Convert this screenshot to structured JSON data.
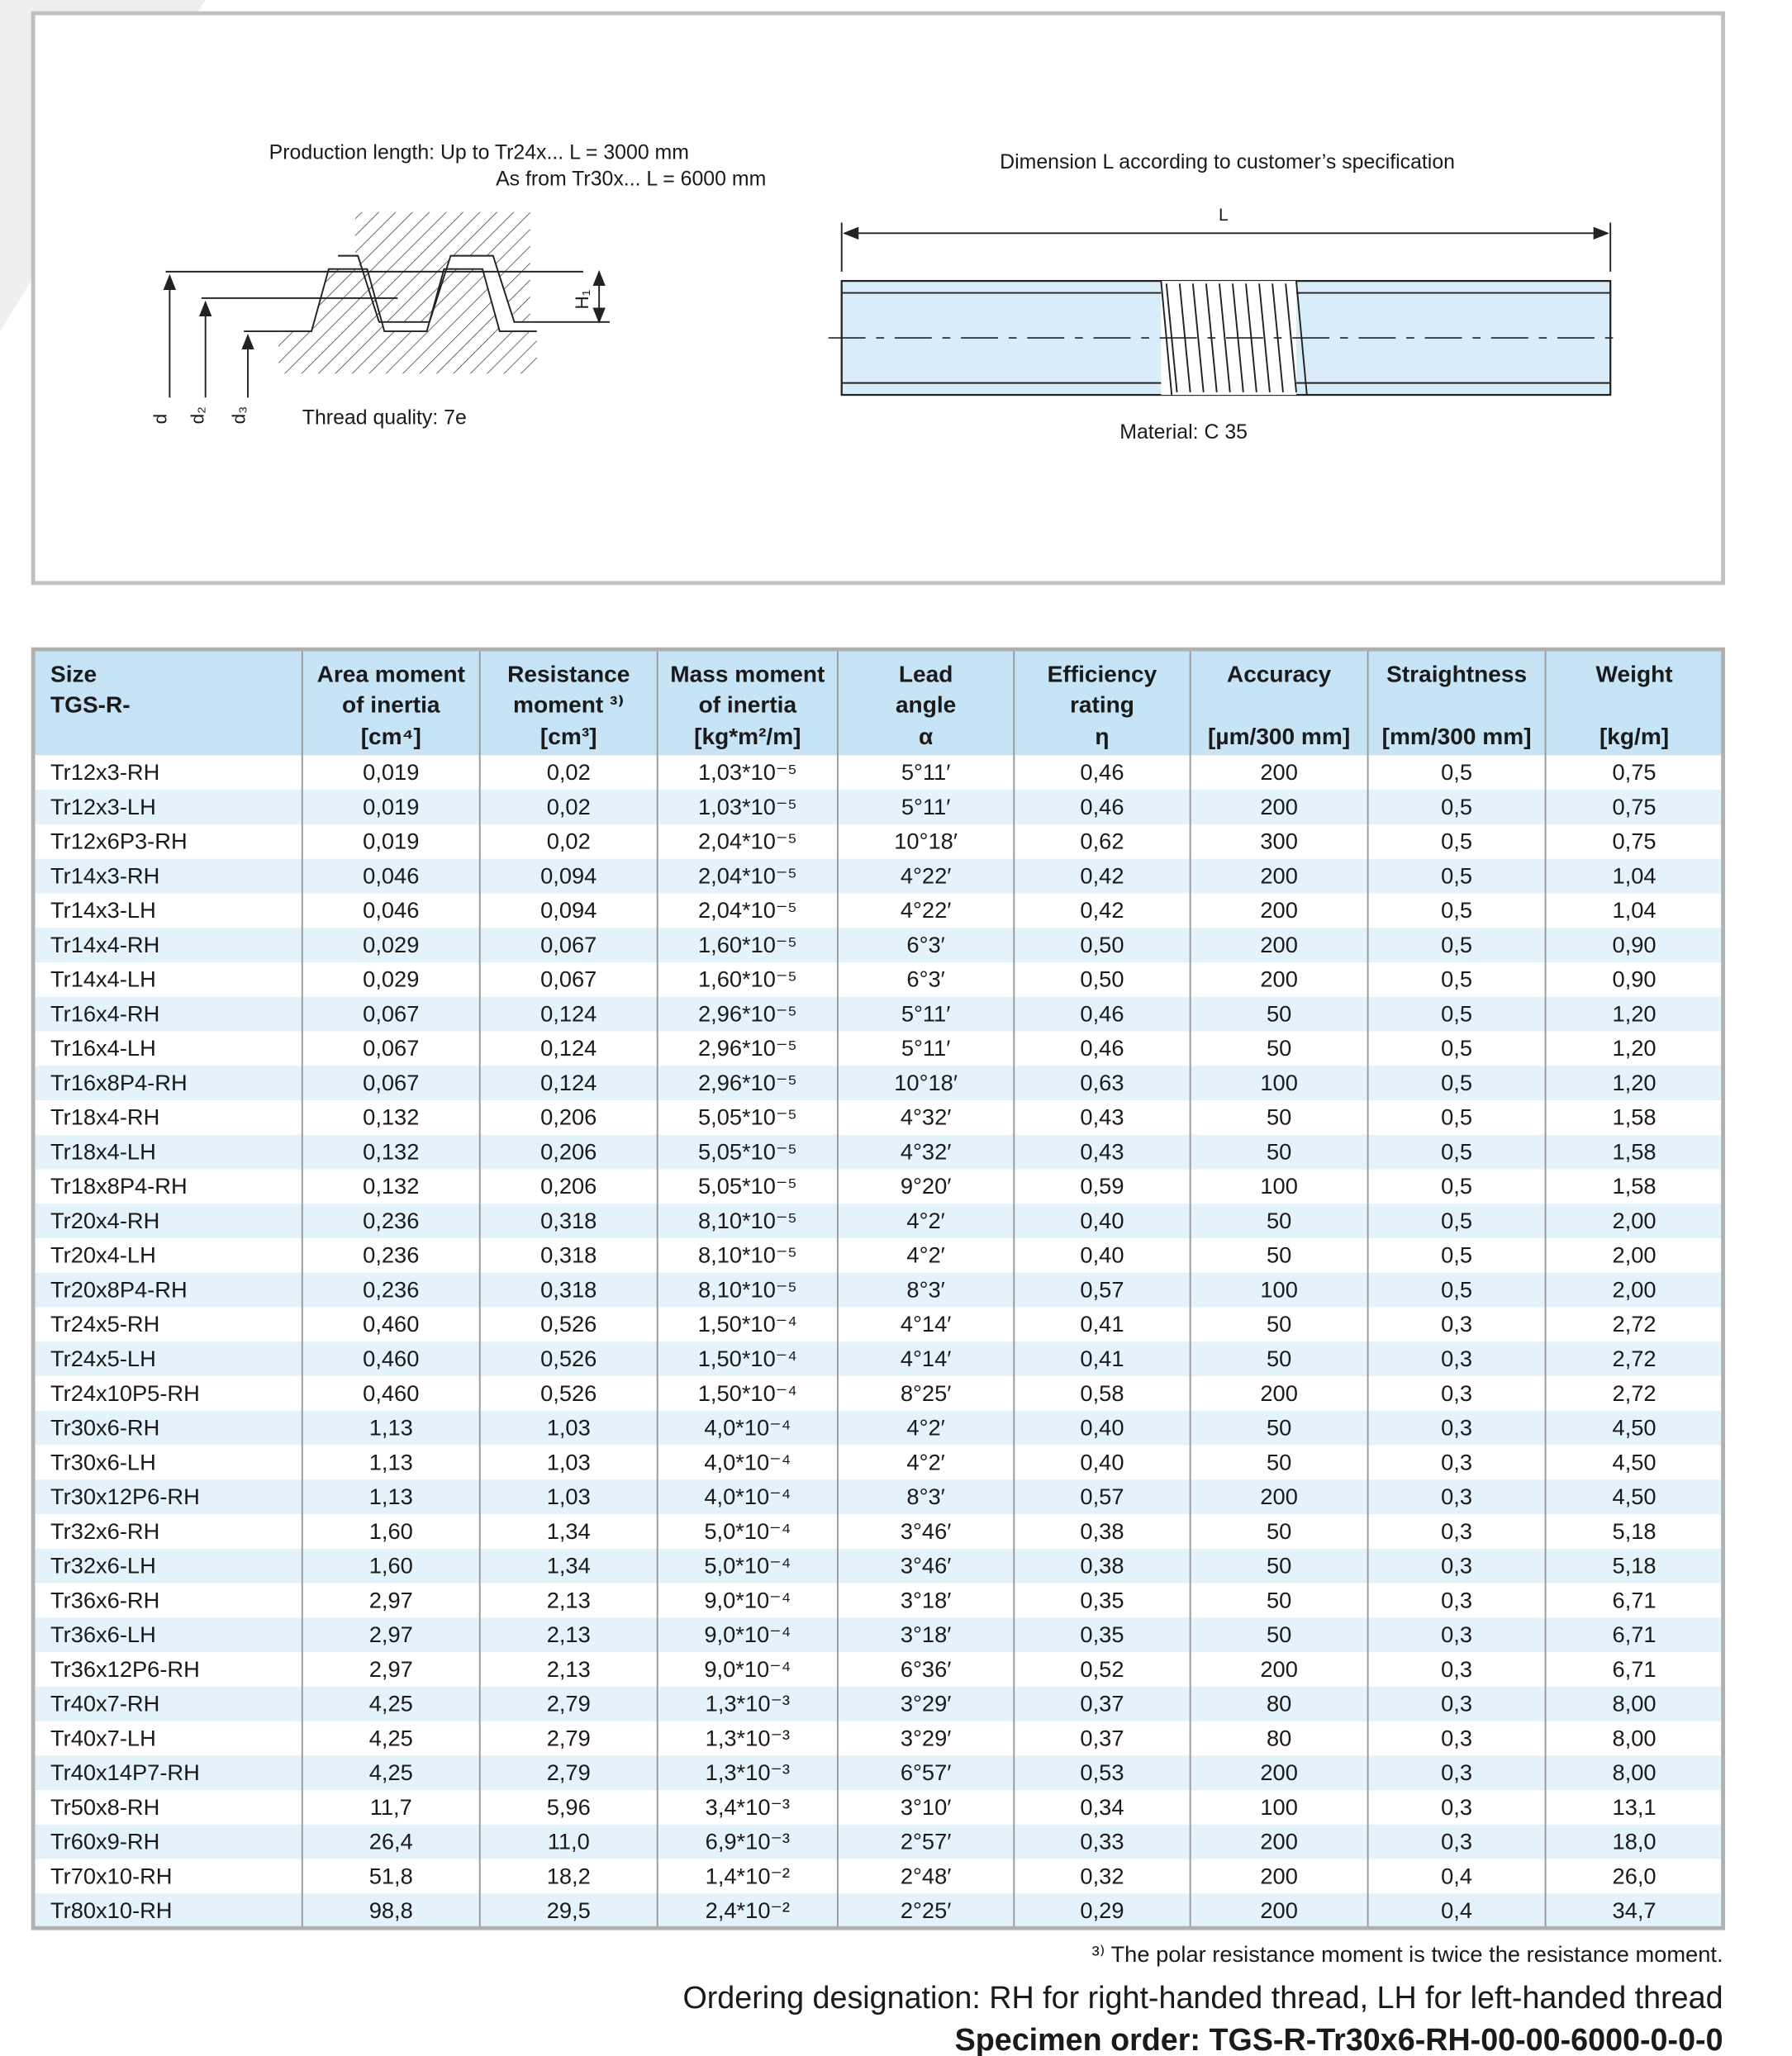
{
  "diagram": {
    "production_length_line1": "Production length: Up to Tr24x...  L = 3000 mm",
    "production_length_line2": "As from Tr30x...  L = 6000 mm",
    "thread_quality": "Thread quality: 7e",
    "label_d": "d",
    "label_d2": "d₂",
    "label_d3": "d₃",
    "label_h1": "H₁",
    "dimension_note": "Dimension L according to customer’s specification",
    "label_l": "L",
    "material": "Material: C 35"
  },
  "table": {
    "header": [
      [
        "Size",
        "TGS-R-"
      ],
      [
        "Area moment",
        "of inertia",
        "[cm⁴]"
      ],
      [
        "Resistance",
        "moment ³⁾",
        "[cm³]"
      ],
      [
        "Mass moment",
        "of inertia",
        "[kg*m²/m]"
      ],
      [
        "Lead",
        "angle",
        "α"
      ],
      [
        "Efficiency",
        "rating",
        "η"
      ],
      [
        "Accuracy",
        "[µm/300 mm]"
      ],
      [
        "Straightness",
        "[mm/300 mm]"
      ],
      [
        "Weight",
        "[kg/m]"
      ]
    ],
    "rows": [
      [
        "Tr12x3-RH",
        "0,019",
        "0,02",
        "1,03*10⁻⁵",
        "5°11′",
        "0,46",
        "200",
        "0,5",
        "0,75"
      ],
      [
        "Tr12x3-LH",
        "0,019",
        "0,02",
        "1,03*10⁻⁵",
        "5°11′",
        "0,46",
        "200",
        "0,5",
        "0,75"
      ],
      [
        "Tr12x6P3-RH",
        "0,019",
        "0,02",
        "2,04*10⁻⁵",
        "10°18′",
        "0,62",
        "300",
        "0,5",
        "0,75"
      ],
      [
        "Tr14x3-RH",
        "0,046",
        "0,094",
        "2,04*10⁻⁵",
        "4°22′",
        "0,42",
        "200",
        "0,5",
        "1,04"
      ],
      [
        "Tr14x3-LH",
        "0,046",
        "0,094",
        "2,04*10⁻⁵",
        "4°22′",
        "0,42",
        "200",
        "0,5",
        "1,04"
      ],
      [
        "Tr14x4-RH",
        "0,029",
        "0,067",
        "1,60*10⁻⁵",
        "6°3′",
        "0,50",
        "200",
        "0,5",
        "0,90"
      ],
      [
        "Tr14x4-LH",
        "0,029",
        "0,067",
        "1,60*10⁻⁵",
        "6°3′",
        "0,50",
        "200",
        "0,5",
        "0,90"
      ],
      [
        "Tr16x4-RH",
        "0,067",
        "0,124",
        "2,96*10⁻⁵",
        "5°11′",
        "0,46",
        "50",
        "0,5",
        "1,20"
      ],
      [
        "Tr16x4-LH",
        "0,067",
        "0,124",
        "2,96*10⁻⁵",
        "5°11′",
        "0,46",
        "50",
        "0,5",
        "1,20"
      ],
      [
        "Tr16x8P4-RH",
        "0,067",
        "0,124",
        "2,96*10⁻⁵",
        "10°18′",
        "0,63",
        "100",
        "0,5",
        "1,20"
      ],
      [
        "Tr18x4-RH",
        "0,132",
        "0,206",
        "5,05*10⁻⁵",
        "4°32′",
        "0,43",
        "50",
        "0,5",
        "1,58"
      ],
      [
        "Tr18x4-LH",
        "0,132",
        "0,206",
        "5,05*10⁻⁵",
        "4°32′",
        "0,43",
        "50",
        "0,5",
        "1,58"
      ],
      [
        "Tr18x8P4-RH",
        "0,132",
        "0,206",
        "5,05*10⁻⁵",
        "9°20′",
        "0,59",
        "100",
        "0,5",
        "1,58"
      ],
      [
        "Tr20x4-RH",
        "0,236",
        "0,318",
        "8,10*10⁻⁵",
        "4°2′",
        "0,40",
        "50",
        "0,5",
        "2,00"
      ],
      [
        "Tr20x4-LH",
        "0,236",
        "0,318",
        "8,10*10⁻⁵",
        "4°2′",
        "0,40",
        "50",
        "0,5",
        "2,00"
      ],
      [
        "Tr20x8P4-RH",
        "0,236",
        "0,318",
        "8,10*10⁻⁵",
        "8°3′",
        "0,57",
        "100",
        "0,5",
        "2,00"
      ],
      [
        "Tr24x5-RH",
        "0,460",
        "0,526",
        "1,50*10⁻⁴",
        "4°14′",
        "0,41",
        "50",
        "0,3",
        "2,72"
      ],
      [
        "Tr24x5-LH",
        "0,460",
        "0,526",
        "1,50*10⁻⁴",
        "4°14′",
        "0,41",
        "50",
        "0,3",
        "2,72"
      ],
      [
        "Tr24x10P5-RH",
        "0,460",
        "0,526",
        "1,50*10⁻⁴",
        "8°25′",
        "0,58",
        "200",
        "0,3",
        "2,72"
      ],
      [
        "Tr30x6-RH",
        "1,13",
        "1,03",
        "4,0*10⁻⁴",
        "4°2′",
        "0,40",
        "50",
        "0,3",
        "4,50"
      ],
      [
        "Tr30x6-LH",
        "1,13",
        "1,03",
        "4,0*10⁻⁴",
        "4°2′",
        "0,40",
        "50",
        "0,3",
        "4,50"
      ],
      [
        "Tr30x12P6-RH",
        "1,13",
        "1,03",
        "4,0*10⁻⁴",
        "8°3′",
        "0,57",
        "200",
        "0,3",
        "4,50"
      ],
      [
        "Tr32x6-RH",
        "1,60",
        "1,34",
        "5,0*10⁻⁴",
        "3°46′",
        "0,38",
        "50",
        "0,3",
        "5,18"
      ],
      [
        "Tr32x6-LH",
        "1,60",
        "1,34",
        "5,0*10⁻⁴",
        "3°46′",
        "0,38",
        "50",
        "0,3",
        "5,18"
      ],
      [
        "Tr36x6-RH",
        "2,97",
        "2,13",
        "9,0*10⁻⁴",
        "3°18′",
        "0,35",
        "50",
        "0,3",
        "6,71"
      ],
      [
        "Tr36x6-LH",
        "2,97",
        "2,13",
        "9,0*10⁻⁴",
        "3°18′",
        "0,35",
        "50",
        "0,3",
        "6,71"
      ],
      [
        "Tr36x12P6-RH",
        "2,97",
        "2,13",
        "9,0*10⁻⁴",
        "6°36′",
        "0,52",
        "200",
        "0,3",
        "6,71"
      ],
      [
        "Tr40x7-RH",
        "4,25",
        "2,79",
        "1,3*10⁻³",
        "3°29′",
        "0,37",
        "80",
        "0,3",
        "8,00"
      ],
      [
        "Tr40x7-LH",
        "4,25",
        "2,79",
        "1,3*10⁻³",
        "3°29′",
        "0,37",
        "80",
        "0,3",
        "8,00"
      ],
      [
        "Tr40x14P7-RH",
        "4,25",
        "2,79",
        "1,3*10⁻³",
        "6°57′",
        "0,53",
        "200",
        "0,3",
        "8,00"
      ],
      [
        "Tr50x8-RH",
        "11,7",
        "5,96",
        "3,4*10⁻³",
        "3°10′",
        "0,34",
        "100",
        "0,3",
        "13,1"
      ],
      [
        "Tr60x9-RH",
        "26,4",
        "11,0",
        "6,9*10⁻³",
        "2°57′",
        "0,33",
        "200",
        "0,3",
        "18,0"
      ],
      [
        "Tr70x10-RH",
        "51,8",
        "18,2",
        "1,4*10⁻²",
        "2°48′",
        "0,32",
        "200",
        "0,4",
        "26,0"
      ],
      [
        "Tr80x10-RH",
        "98,8",
        "29,5",
        "2,4*10⁻²",
        "2°25′",
        "0,29",
        "200",
        "0,4",
        "34,7"
      ]
    ]
  },
  "footer": {
    "footnote": "³⁾ The polar resistance moment is twice the resistance moment.",
    "ordering": "Ordering designation: RH for right-handed thread, LH for left-handed thread",
    "specimen": "Specimen order: TGS-R-Tr30x6-RH-00-00-6000-0-0-0"
  }
}
